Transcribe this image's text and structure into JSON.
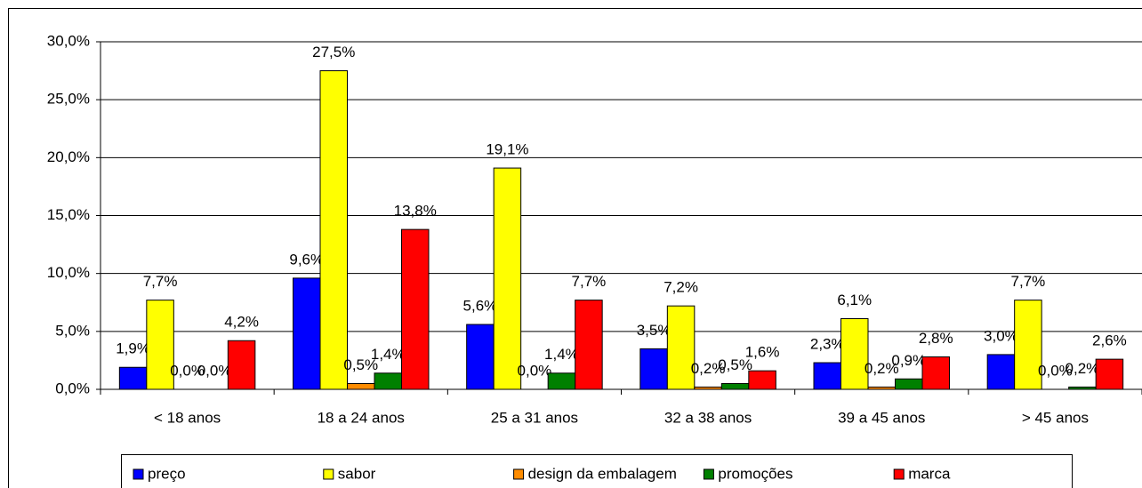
{
  "chart_data": {
    "type": "bar",
    "categories": [
      "< 18 anos",
      "18 a 24 anos",
      "25 a 31 anos",
      "32 a 38 anos",
      "39 a 45 anos",
      "> 45 anos"
    ],
    "series": [
      {
        "name": "preço",
        "color": "#0000ff",
        "values": [
          1.9,
          9.6,
          5.6,
          3.5,
          2.3,
          3.0
        ],
        "value_labels": [
          "1,9%",
          "9,6%",
          "5,6%",
          "3,5%",
          "2,3%",
          "3,0%"
        ]
      },
      {
        "name": "sabor",
        "color": "#ffff00",
        "values": [
          7.7,
          27.5,
          19.1,
          7.2,
          6.1,
          7.7
        ],
        "value_labels": [
          "7,7%",
          "27,5%",
          "19,1%",
          "7,2%",
          "6,1%",
          "7,7%"
        ]
      },
      {
        "name": "design da embalagem",
        "color": "#ff8c00",
        "values": [
          0.0,
          0.5,
          0.0,
          0.2,
          0.2,
          0.0
        ],
        "value_labels": [
          "0,0%",
          "0,5%",
          "0,0%",
          "0,2%",
          "0,2%",
          "0,0%"
        ]
      },
      {
        "name": "promoções",
        "color": "#008000",
        "values": [
          0.0,
          1.4,
          1.4,
          0.5,
          0.9,
          0.2
        ],
        "value_labels": [
          "0,0%",
          "1,4%",
          "1,4%",
          "0,5%",
          "0,9%",
          "0,2%"
        ]
      },
      {
        "name": "marca",
        "color": "#ff0000",
        "values": [
          4.2,
          13.8,
          7.7,
          1.6,
          2.8,
          2.6
        ],
        "value_labels": [
          "4,2%",
          "13,8%",
          "7,7%",
          "1,6%",
          "2,8%",
          "2,6%"
        ]
      }
    ],
    "ylim": [
      0,
      30
    ],
    "yticks": [
      {
        "value": 0,
        "label": "0,0%"
      },
      {
        "value": 5,
        "label": "5,0%"
      },
      {
        "value": 10,
        "label": "10,0%"
      },
      {
        "value": 15,
        "label": "15,0%"
      },
      {
        "value": 20,
        "label": "20,0%"
      },
      {
        "value": 25,
        "label": "25,0%"
      },
      {
        "value": 30,
        "label": "30,0%"
      }
    ],
    "grid": true,
    "legend": "bottom"
  }
}
